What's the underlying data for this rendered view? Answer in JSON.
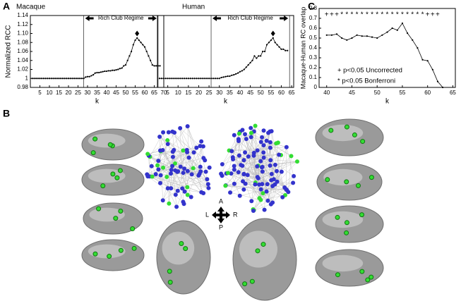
{
  "figure": {
    "panel_a": "A",
    "panel_b": "B",
    "panel_c": "C",
    "compass": {
      "anterior": "A",
      "posterior": "P",
      "left": "L",
      "right": "R"
    }
  },
  "chart_data": [
    {
      "type": "line",
      "title": "Macaque",
      "xlabel": "k",
      "ylabel": "Normalized RCC",
      "color": "#000000",
      "x": [
        1,
        2,
        3,
        4,
        5,
        6,
        7,
        8,
        9,
        10,
        11,
        12,
        13,
        14,
        15,
        16,
        17,
        18,
        19,
        20,
        21,
        22,
        23,
        24,
        25,
        26,
        27,
        28,
        29,
        30,
        31,
        32,
        33,
        34,
        35,
        36,
        37,
        38,
        39,
        40,
        41,
        42,
        43,
        44,
        45,
        46,
        47,
        48,
        49,
        50,
        51,
        52,
        53,
        54,
        55,
        56,
        57,
        58,
        59,
        60,
        61,
        62,
        63,
        64,
        65,
        66,
        67,
        68
      ],
      "values": [
        1,
        1,
        1,
        1,
        1,
        1,
        1,
        1,
        1,
        1,
        1,
        1,
        1,
        1,
        1,
        1,
        1,
        1,
        1,
        1,
        1,
        1,
        1,
        1,
        1,
        1,
        1,
        1,
        1.003,
        1.004,
        1.004,
        1.006,
        1.008,
        1.012,
        1.013,
        1.013,
        1.014,
        1.015,
        1.016,
        1.016,
        1.017,
        1.017,
        1.018,
        1.018,
        1.019,
        1.02,
        1.022,
        1.023,
        1.028,
        1.03,
        1.04,
        1.05,
        1.06,
        1.075,
        1.085,
        1.09,
        1.085,
        1.08,
        1.075,
        1.07,
        1.06,
        1.05,
        1.04,
        1.03,
        1.028,
        1.028,
        1.028,
        1.028
      ],
      "xlim": [
        0,
        70
      ],
      "xticks": [
        5,
        10,
        15,
        20,
        25,
        30,
        35,
        40,
        45,
        50,
        55,
        60,
        65,
        70
      ],
      "ylim": [
        0.98,
        1.14
      ],
      "yticks": [
        0.98,
        1,
        1.02,
        1.04,
        1.06,
        1.08,
        {
          "value": 1.1,
          "label": "1.10"
        },
        1.12,
        1.14
      ],
      "regime": {
        "label": "Rich Club Regime",
        "bounds": [
          28,
          67
        ]
      },
      "peak": {
        "x": 56,
        "y": 1.1
      }
    },
    {
      "type": "line",
      "title": "Human",
      "xlabel": "k",
      "color": "#000000",
      "x": [
        1,
        2,
        3,
        4,
        5,
        6,
        7,
        8,
        9,
        10,
        11,
        12,
        13,
        14,
        15,
        16,
        17,
        18,
        19,
        20,
        21,
        22,
        23,
        24,
        25,
        26,
        27,
        28,
        29,
        30,
        31,
        32,
        33,
        34,
        35,
        36,
        37,
        38,
        39,
        40,
        41,
        42,
        43,
        44,
        45,
        46,
        47,
        48,
        49,
        50,
        51,
        52,
        53,
        54,
        55,
        56,
        57,
        58,
        59,
        60,
        61,
        62,
        63
      ],
      "values": [
        1,
        1,
        1,
        1,
        1,
        1,
        1,
        1,
        1,
        1,
        1,
        1,
        1,
        1,
        1,
        1,
        1,
        1,
        1,
        1,
        1,
        1,
        1,
        1,
        1,
        1,
        1,
        1,
        1,
        1,
        1.002,
        1.003,
        1.004,
        1.005,
        1.005,
        1.007,
        1.008,
        1.01,
        1.012,
        1.015,
        1.017,
        1.02,
        1.025,
        1.03,
        1.035,
        1.04,
        1.05,
        1.045,
        1.05,
        1.05,
        1.06,
        1.06,
        1.075,
        1.08,
        1.085,
        1.09,
        1.08,
        1.075,
        1.07,
        1.065,
        1.065,
        1.062,
        1.062
      ],
      "xlim": [
        0,
        66
      ],
      "xticks": [
        5,
        10,
        15,
        20,
        25,
        30,
        35,
        40,
        45,
        50,
        55,
        60,
        65
      ],
      "ylim": [
        0.98,
        1.14
      ],
      "regime": {
        "label": "Rich Club Regime",
        "bounds": [
          26,
          64
        ]
      },
      "peak": {
        "x": 56,
        "y": 1.1
      }
    },
    {
      "type": "line",
      "xlabel": "k",
      "ylabel": "Macaque-Human RC overlap",
      "color": "#000000",
      "x": [
        40,
        41,
        42,
        43,
        44,
        45,
        46,
        47,
        48,
        49,
        50,
        51,
        52,
        53,
        54,
        55,
        56,
        57,
        58,
        59,
        60,
        61,
        62,
        63
      ],
      "values": [
        0.53,
        0.53,
        0.54,
        0.5,
        0.48,
        0.5,
        0.53,
        0.52,
        0.52,
        0.51,
        0.5,
        0.53,
        0.56,
        0.6,
        0.58,
        0.65,
        0.55,
        0.48,
        0.4,
        0.28,
        0.27,
        0.18,
        0.06,
        0
      ],
      "xlim": [
        38.5,
        65.5
      ],
      "xticks": [
        40,
        45,
        50,
        55,
        60,
        65
      ],
      "ylim": [
        0,
        0.8
      ],
      "yticks": [
        0,
        0.1,
        0.2,
        0.3,
        0.4,
        0.5,
        0.6,
        0.7,
        0.8
      ],
      "significance": {
        "x": [
          40,
          41,
          42,
          43,
          44,
          45,
          46,
          47,
          48,
          49,
          50,
          51,
          52,
          53,
          54,
          55,
          56,
          57,
          58,
          59,
          60,
          61,
          62
        ],
        "symbols": [
          "+",
          "+",
          "+",
          "*",
          "*",
          "*",
          "*",
          "*",
          "*",
          "*",
          "*",
          "*",
          "*",
          "*",
          "*",
          "*",
          "*",
          "*",
          "*",
          "*",
          "+",
          "+",
          "+"
        ]
      },
      "notes": [
        "+ p<0.05 Uncorrected",
        "* p<0.05 Bonferroni"
      ]
    }
  ]
}
